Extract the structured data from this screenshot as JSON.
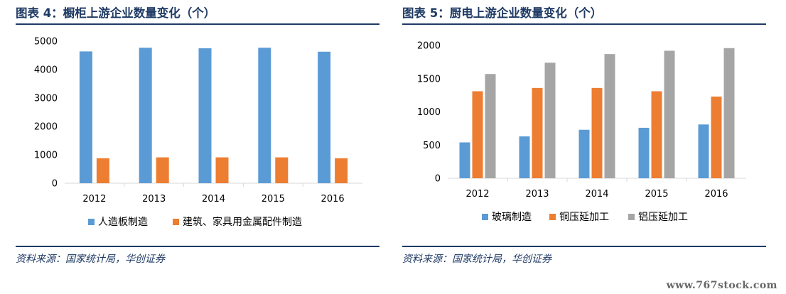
{
  "watermark": "www.767stock.com",
  "panels": [
    {
      "title": "图表 4：橱柜上游企业数量变化（个）",
      "source": "资料来源：国家统计局，华创证券"
    },
    {
      "title": "图表 5：厨电上游企业数量变化（个）",
      "source": "资料来源：国家统计局，华创证券"
    }
  ],
  "chart_data": [
    {
      "type": "bar",
      "categories": [
        "2012",
        "2013",
        "2014",
        "2015",
        "2016"
      ],
      "series": [
        {
          "name": "人造板制造",
          "color": "#5b9bd5",
          "values": [
            4640,
            4770,
            4750,
            4770,
            4630
          ]
        },
        {
          "name": "建筑、家具用金属配件制造",
          "color": "#ed7d31",
          "values": [
            880,
            910,
            910,
            910,
            880
          ]
        }
      ],
      "ylim": [
        0,
        5000
      ],
      "yticks": [
        0,
        1000,
        2000,
        3000,
        4000,
        5000
      ],
      "grid": false,
      "legend": "bottom"
    },
    {
      "type": "bar",
      "categories": [
        "2012",
        "2013",
        "2014",
        "2015",
        "2016"
      ],
      "series": [
        {
          "name": "玻璃制造",
          "color": "#5b9bd5",
          "values": [
            540,
            630,
            730,
            760,
            810
          ]
        },
        {
          "name": "铜压延加工",
          "color": "#ed7d31",
          "values": [
            1310,
            1360,
            1360,
            1310,
            1230
          ]
        },
        {
          "name": "铝压延加工",
          "color": "#a5a5a5",
          "values": [
            1570,
            1740,
            1870,
            1920,
            1960
          ]
        }
      ],
      "ylim": [
        0,
        2000
      ],
      "yticks": [
        0,
        500,
        1000,
        1500,
        2000
      ],
      "grid": false,
      "legend": "bottom"
    }
  ]
}
